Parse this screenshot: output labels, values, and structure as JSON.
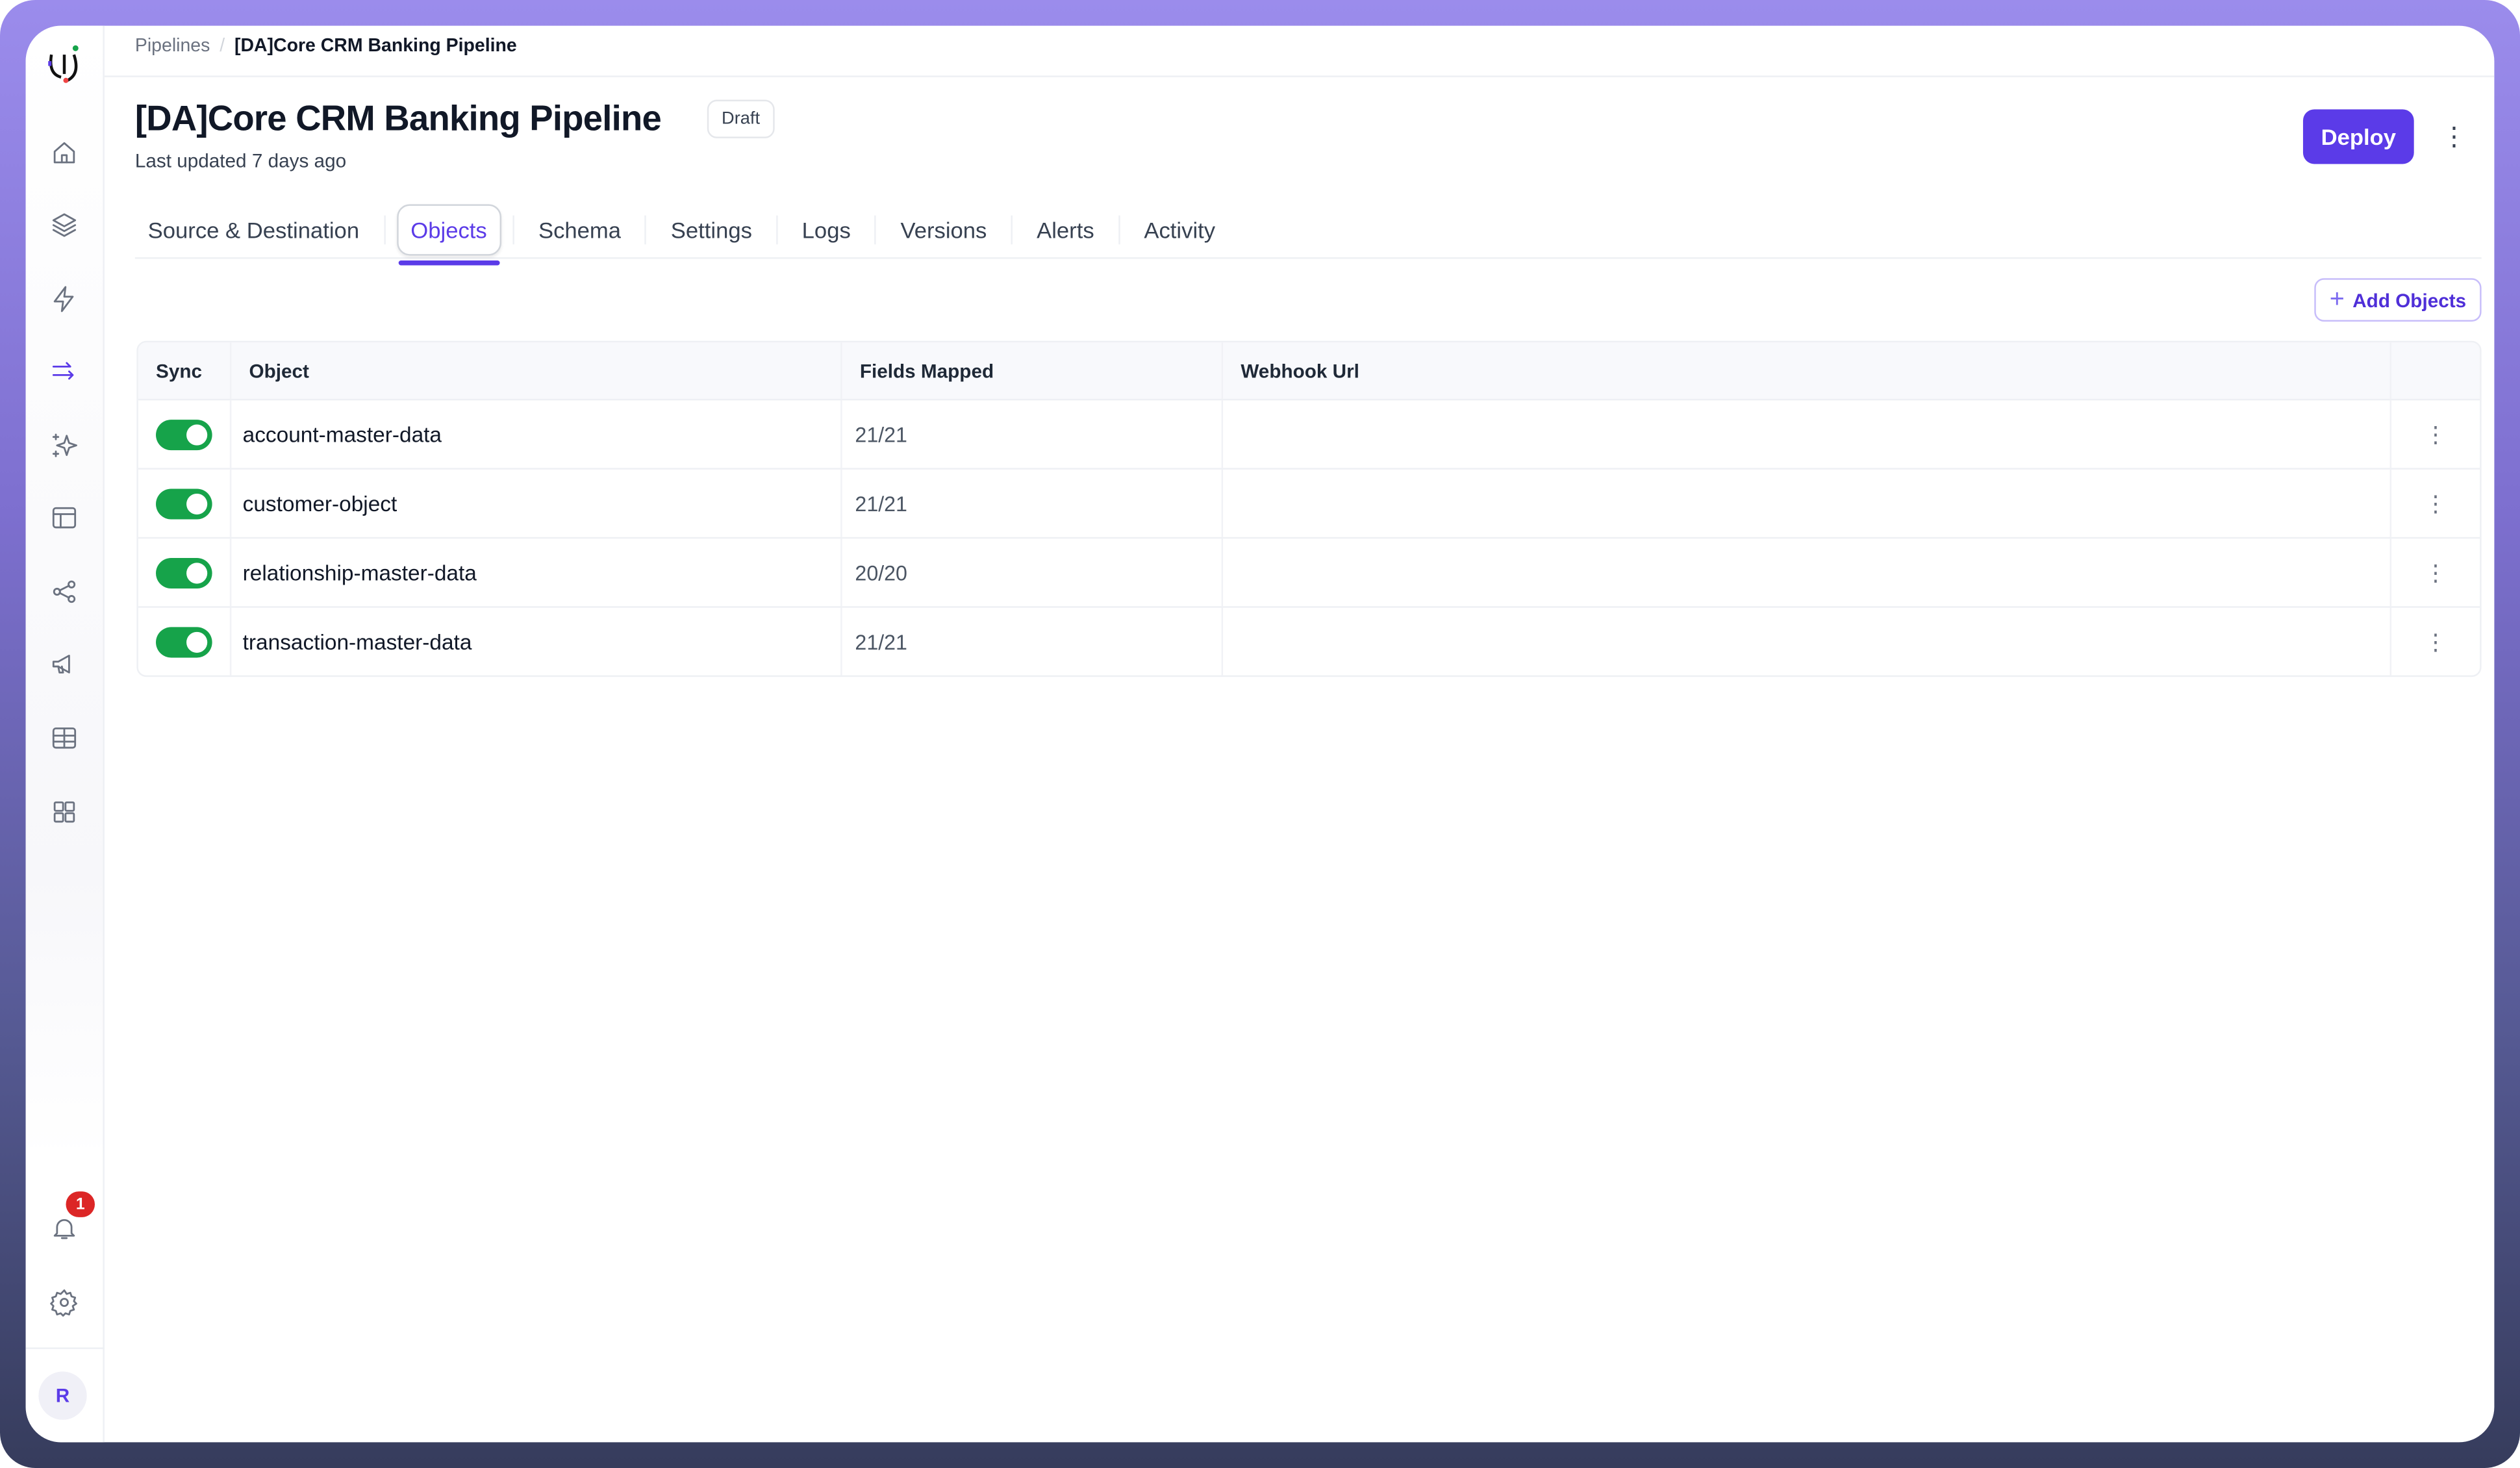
{
  "app": {
    "logo": "U logo",
    "accent": "#5b3be8"
  },
  "sidebar": {
    "items": [
      {
        "icon": "home-icon"
      },
      {
        "icon": "layers-icon"
      },
      {
        "icon": "lightning-icon"
      },
      {
        "icon": "pipeline-arrows-icon",
        "active": true
      },
      {
        "icon": "sparkles-icon"
      },
      {
        "icon": "layout-icon"
      },
      {
        "icon": "share-nodes-icon"
      },
      {
        "icon": "megaphone-icon"
      },
      {
        "icon": "table-icon"
      },
      {
        "icon": "grid-icon"
      }
    ],
    "notifications_count": "1",
    "avatar_initial": "R"
  },
  "breadcrumb": {
    "parent": "Pipelines",
    "separator": "/",
    "current": "[DA]Core CRM Banking Pipeline"
  },
  "header": {
    "title": "[DA]Core CRM Banking Pipeline",
    "status": "Draft",
    "last_updated": "Last updated 7 days ago",
    "deploy_label": "Deploy"
  },
  "tabs": [
    {
      "label": "Source & Destination"
    },
    {
      "label": "Objects",
      "active": true
    },
    {
      "label": "Schema"
    },
    {
      "label": "Settings"
    },
    {
      "label": "Logs"
    },
    {
      "label": "Versions"
    },
    {
      "label": "Alerts"
    },
    {
      "label": "Activity"
    }
  ],
  "add_objects_label": "Add Objects",
  "table": {
    "columns": [
      "Sync",
      "Object",
      "Fields Mapped",
      "Webhook Url"
    ],
    "rows": [
      {
        "sync": true,
        "object": "account-master-data",
        "fields_mapped": "21/21",
        "webhook_url": ""
      },
      {
        "sync": true,
        "object": "customer-object",
        "fields_mapped": "21/21",
        "webhook_url": ""
      },
      {
        "sync": true,
        "object": "relationship-master-data",
        "fields_mapped": "20/20",
        "webhook_url": ""
      },
      {
        "sync": true,
        "object": "transaction-master-data",
        "fields_mapped": "21/21",
        "webhook_url": ""
      }
    ]
  }
}
